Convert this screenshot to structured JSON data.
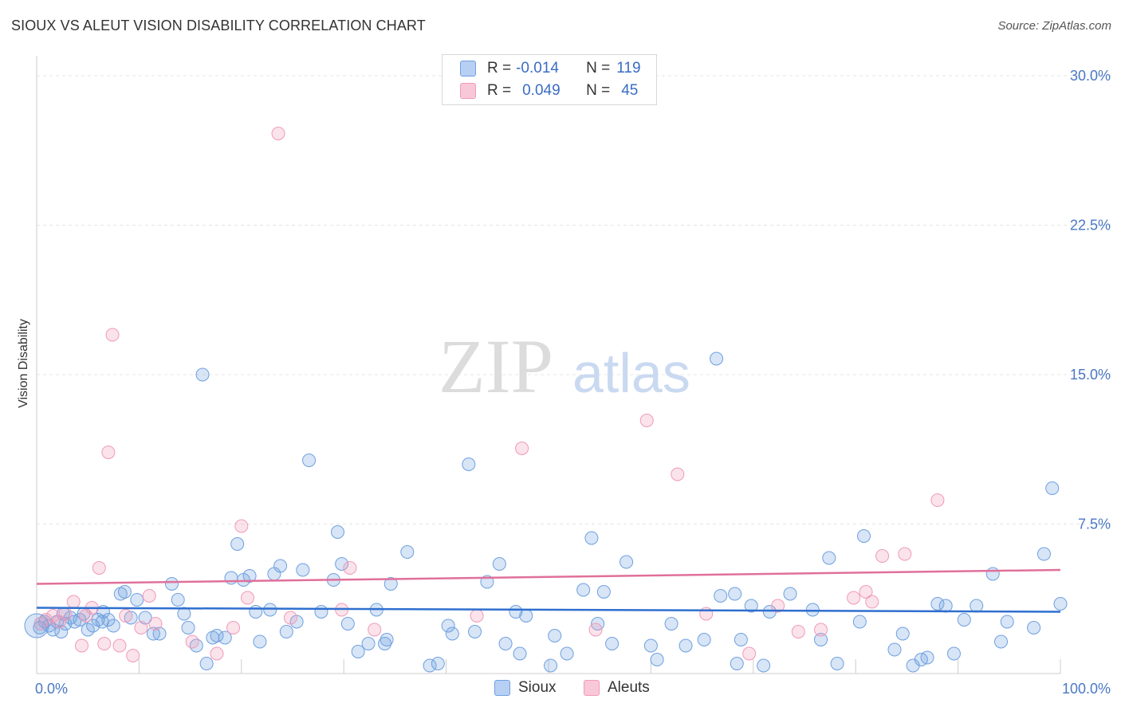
{
  "title": "SIOUX VS ALEUT VISION DISABILITY CORRELATION CHART",
  "source": "Source: ZipAtlas.com",
  "watermark": {
    "zip": "ZIP",
    "atlas": "atlas"
  },
  "legend": {
    "rows": [
      {
        "r_label": "R =",
        "r_value": "-0.014",
        "n_label": "N =",
        "n_value": "119",
        "color": "#6fa0e0"
      },
      {
        "r_label": "R =",
        "r_value": "0.049",
        "n_label": "N =",
        "n_value": "45",
        "color": "#f09ab8"
      }
    ]
  },
  "bottom_legend": [
    {
      "label": "Sioux",
      "color": "#6fa0e0"
    },
    {
      "label": "Aleuts",
      "color": "#f09ab8"
    }
  ],
  "chart_data": {
    "type": "scatter",
    "ylabel": "Vision Disability",
    "xlim": [
      0,
      100
    ],
    "ylim": [
      0,
      31
    ],
    "y_ticks": [
      {
        "value": 7.5,
        "label": "7.5%"
      },
      {
        "value": 15.0,
        "label": "15.0%"
      },
      {
        "value": 22.5,
        "label": "22.5%"
      },
      {
        "value": 30.0,
        "label": "30.0%"
      }
    ],
    "x_ticks": [
      {
        "value": 0,
        "label": "0.0%"
      },
      {
        "value": 100,
        "label": "100.0%"
      }
    ],
    "grid": true,
    "series": [
      {
        "name": "Sioux",
        "color": "#6fa0e0",
        "trend": {
          "x0": 0,
          "y0": 3.3,
          "x1": 100,
          "y1": 3.1,
          "color": "#2f6fcf"
        },
        "points": [
          [
            0.3,
            2.3
          ],
          [
            0.8,
            2.6
          ],
          [
            1.2,
            2.4
          ],
          [
            1.6,
            2.2
          ],
          [
            2.0,
            2.6
          ],
          [
            2.4,
            2.1
          ],
          [
            2.8,
            2.5
          ],
          [
            3.3,
            2.8
          ],
          [
            3.7,
            2.6
          ],
          [
            4.2,
            2.7
          ],
          [
            4.6,
            3.0
          ],
          [
            5.0,
            2.2
          ],
          [
            5.5,
            2.4
          ],
          [
            6.0,
            2.7
          ],
          [
            6.5,
            3.1
          ],
          [
            7.0,
            2.7
          ],
          [
            7.5,
            2.4
          ],
          [
            8.2,
            4.0
          ],
          [
            8.6,
            4.1
          ],
          [
            9.2,
            2.8
          ],
          [
            9.8,
            3.7
          ],
          [
            10.6,
            2.8
          ],
          [
            11.4,
            2.0
          ],
          [
            12.0,
            2.0
          ],
          [
            13.2,
            4.5
          ],
          [
            13.8,
            3.7
          ],
          [
            14.4,
            3.0
          ],
          [
            14.8,
            2.3
          ],
          [
            15.6,
            1.4
          ],
          [
            16.2,
            15.0
          ],
          [
            16.6,
            0.5
          ],
          [
            17.6,
            1.9
          ],
          [
            18.4,
            1.8
          ],
          [
            19.0,
            4.8
          ],
          [
            19.6,
            6.5
          ],
          [
            20.2,
            4.7
          ],
          [
            20.8,
            4.9
          ],
          [
            21.4,
            3.1
          ],
          [
            21.8,
            1.6
          ],
          [
            22.8,
            3.2
          ],
          [
            23.2,
            5.0
          ],
          [
            23.8,
            5.4
          ],
          [
            24.4,
            2.1
          ],
          [
            25.4,
            2.6
          ],
          [
            26.0,
            5.2
          ],
          [
            26.6,
            10.7
          ],
          [
            27.8,
            3.1
          ],
          [
            29.0,
            4.7
          ],
          [
            29.4,
            7.1
          ],
          [
            29.8,
            5.5
          ],
          [
            30.4,
            2.5
          ],
          [
            31.4,
            1.1
          ],
          [
            32.4,
            1.5
          ],
          [
            33.2,
            3.2
          ],
          [
            34.2,
            1.7
          ],
          [
            34.6,
            4.5
          ],
          [
            36.2,
            6.1
          ],
          [
            38.4,
            0.4
          ],
          [
            39.2,
            0.5
          ],
          [
            40.2,
            2.4
          ],
          [
            40.6,
            2.0
          ],
          [
            42.2,
            10.5
          ],
          [
            42.8,
            2.1
          ],
          [
            44.0,
            4.6
          ],
          [
            45.2,
            5.5
          ],
          [
            45.8,
            1.5
          ],
          [
            46.8,
            3.1
          ],
          [
            47.2,
            1.0
          ],
          [
            47.8,
            2.9
          ],
          [
            50.2,
            0.4
          ],
          [
            50.6,
            1.9
          ],
          [
            51.8,
            1.0
          ],
          [
            53.4,
            4.2
          ],
          [
            54.2,
            6.8
          ],
          [
            54.8,
            2.5
          ],
          [
            55.4,
            4.1
          ],
          [
            56.2,
            1.5
          ],
          [
            57.6,
            5.6
          ],
          [
            60.0,
            1.4
          ],
          [
            60.6,
            0.7
          ],
          [
            62.0,
            2.5
          ],
          [
            63.4,
            1.4
          ],
          [
            66.4,
            15.8
          ],
          [
            66.8,
            3.9
          ],
          [
            68.4,
            0.5
          ],
          [
            68.8,
            1.7
          ],
          [
            69.8,
            3.4
          ],
          [
            71.0,
            0.4
          ],
          [
            71.6,
            3.1
          ],
          [
            73.6,
            4.0
          ],
          [
            75.8,
            3.2
          ],
          [
            76.6,
            1.7
          ],
          [
            77.4,
            5.8
          ],
          [
            78.2,
            0.5
          ],
          [
            80.4,
            2.6
          ],
          [
            80.8,
            6.9
          ],
          [
            83.8,
            1.2
          ],
          [
            84.6,
            2.0
          ],
          [
            85.6,
            0.4
          ],
          [
            86.4,
            0.7
          ],
          [
            87.0,
            0.8
          ],
          [
            88.0,
            3.5
          ],
          [
            88.8,
            3.4
          ],
          [
            89.6,
            1.0
          ],
          [
            90.6,
            2.7
          ],
          [
            91.8,
            3.4
          ],
          [
            93.4,
            5.0
          ],
          [
            94.2,
            1.6
          ],
          [
            94.8,
            2.6
          ],
          [
            97.4,
            2.3
          ],
          [
            98.4,
            6.0
          ],
          [
            99.2,
            9.3
          ],
          [
            100.0,
            3.5
          ],
          [
            2.6,
            3.0
          ],
          [
            6.4,
            2.6
          ],
          [
            17.2,
            1.8
          ],
          [
            34.0,
            1.5
          ],
          [
            65.2,
            1.7
          ],
          [
            68.2,
            4.0
          ]
        ]
      },
      {
        "name": "Aleuts",
        "color": "#f09ab8",
        "trend": {
          "x0": 0,
          "y0": 4.5,
          "x1": 100,
          "y1": 5.2,
          "color": "#e0709a"
        },
        "points": [
          [
            0.4,
            2.5
          ],
          [
            0.9,
            2.7
          ],
          [
            1.6,
            2.9
          ],
          [
            2.2,
            2.6
          ],
          [
            2.8,
            3.0
          ],
          [
            3.6,
            3.6
          ],
          [
            4.4,
            1.4
          ],
          [
            4.8,
            2.9
          ],
          [
            5.4,
            3.3
          ],
          [
            6.1,
            5.3
          ],
          [
            6.6,
            1.5
          ],
          [
            7.0,
            11.1
          ],
          [
            7.4,
            17.0
          ],
          [
            8.1,
            1.4
          ],
          [
            8.7,
            2.9
          ],
          [
            9.4,
            0.9
          ],
          [
            10.2,
            2.3
          ],
          [
            11.0,
            3.9
          ],
          [
            11.6,
            2.5
          ],
          [
            15.2,
            1.6
          ],
          [
            17.6,
            1.0
          ],
          [
            19.2,
            2.3
          ],
          [
            20.0,
            7.4
          ],
          [
            20.6,
            3.8
          ],
          [
            23.6,
            27.1
          ],
          [
            24.8,
            2.8
          ],
          [
            29.8,
            3.2
          ],
          [
            30.6,
            5.3
          ],
          [
            33.0,
            2.2
          ],
          [
            43.0,
            2.9
          ],
          [
            47.4,
            11.3
          ],
          [
            54.6,
            2.2
          ],
          [
            59.6,
            12.7
          ],
          [
            62.6,
            10.0
          ],
          [
            65.4,
            3.0
          ],
          [
            69.6,
            1.0
          ],
          [
            72.4,
            3.4
          ],
          [
            74.4,
            2.1
          ],
          [
            76.6,
            2.2
          ],
          [
            79.8,
            3.8
          ],
          [
            81.0,
            4.1
          ],
          [
            81.6,
            3.6
          ],
          [
            82.6,
            5.9
          ],
          [
            84.8,
            6.0
          ],
          [
            88.0,
            8.7
          ]
        ]
      }
    ]
  }
}
